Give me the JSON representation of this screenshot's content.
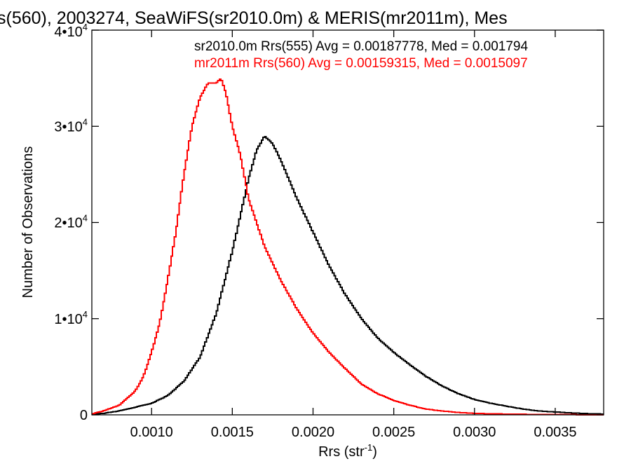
{
  "chart_data": {
    "type": "line",
    "title": "s(560), 2003274, SeaWiFS(sr2010.0m) & MERIS(mr2011m), Mes",
    "xlabel": "Rrs (str",
    "xlabel_sup": "-1",
    "xlabel_close": ")",
    "ylabel": "Number of Observations",
    "xlim": [
      0.00063,
      0.0038
    ],
    "ylim": [
      0,
      40000
    ],
    "x_ticks": [
      {
        "value": 0.001,
        "label": "0.0010"
      },
      {
        "value": 0.0015,
        "label": "0.0015"
      },
      {
        "value": 0.002,
        "label": "0.0020"
      },
      {
        "value": 0.0025,
        "label": "0.0025"
      },
      {
        "value": 0.003,
        "label": "0.0030"
      },
      {
        "value": 0.0035,
        "label": "0.0035"
      }
    ],
    "y_ticks": [
      {
        "value": 0,
        "label": "0",
        "sup": ""
      },
      {
        "value": 10000,
        "label": "1•10",
        "sup": "4"
      },
      {
        "value": 20000,
        "label": "2•10",
        "sup": "4"
      },
      {
        "value": 30000,
        "label": "3•10",
        "sup": "4"
      },
      {
        "value": 40000,
        "label": "4•10",
        "sup": "4"
      }
    ],
    "annotations": [
      {
        "text": "sr2010.0m Rrs(555) Avg = 0.00187778, Med = 0.001794",
        "color": "#000000"
      },
      {
        "text": "mr2011m Rrs(560) Avg = 0.00159315, Med = 0.0015097",
        "color": "#ff0000"
      }
    ],
    "series": [
      {
        "color": "#000000",
        "x": [
          0.00063,
          0.0007,
          0.0008,
          0.0009,
          0.001,
          0.0011,
          0.0012,
          0.0013,
          0.0014,
          0.0015,
          0.0016,
          0.00165,
          0.0017,
          0.00175,
          0.0018,
          0.0019,
          0.002,
          0.0021,
          0.0022,
          0.0023,
          0.0024,
          0.0025,
          0.0026,
          0.0027,
          0.0028,
          0.0029,
          0.003,
          0.0031,
          0.0032,
          0.0033,
          0.0034,
          0.0035,
          0.0036,
          0.0037,
          0.0038
        ],
        "y": [
          50,
          150,
          400,
          800,
          1200,
          2000,
          3500,
          6000,
          10500,
          17000,
          24500,
          27500,
          29000,
          28200,
          26500,
          22500,
          19000,
          15500,
          12500,
          10000,
          8000,
          6500,
          5200,
          4000,
          3000,
          2200,
          1600,
          1200,
          900,
          600,
          400,
          300,
          200,
          130,
          80
        ]
      },
      {
        "color": "#ff0000",
        "x": [
          0.00063,
          0.0007,
          0.0008,
          0.0009,
          0.00095,
          0.001,
          0.00105,
          0.0011,
          0.00115,
          0.0012,
          0.00125,
          0.0013,
          0.00135,
          0.0014,
          0.00143,
          0.00146,
          0.0015,
          0.00155,
          0.0016,
          0.0017,
          0.0018,
          0.0019,
          0.002,
          0.0021,
          0.0022,
          0.0023,
          0.0024,
          0.0025,
          0.0026,
          0.0027,
          0.0028,
          0.0029,
          0.003,
          0.0032,
          0.0034,
          0.0036,
          0.0038
        ],
        "y": [
          100,
          400,
          1000,
          2500,
          4000,
          6500,
          9500,
          14000,
          19000,
          25000,
          30000,
          33000,
          34500,
          34500,
          35000,
          33500,
          30000,
          27000,
          22500,
          17500,
          14000,
          11000,
          8500,
          6500,
          4800,
          3200,
          2200,
          1500,
          1000,
          600,
          400,
          250,
          150,
          80,
          40,
          20,
          10
        ]
      }
    ]
  }
}
